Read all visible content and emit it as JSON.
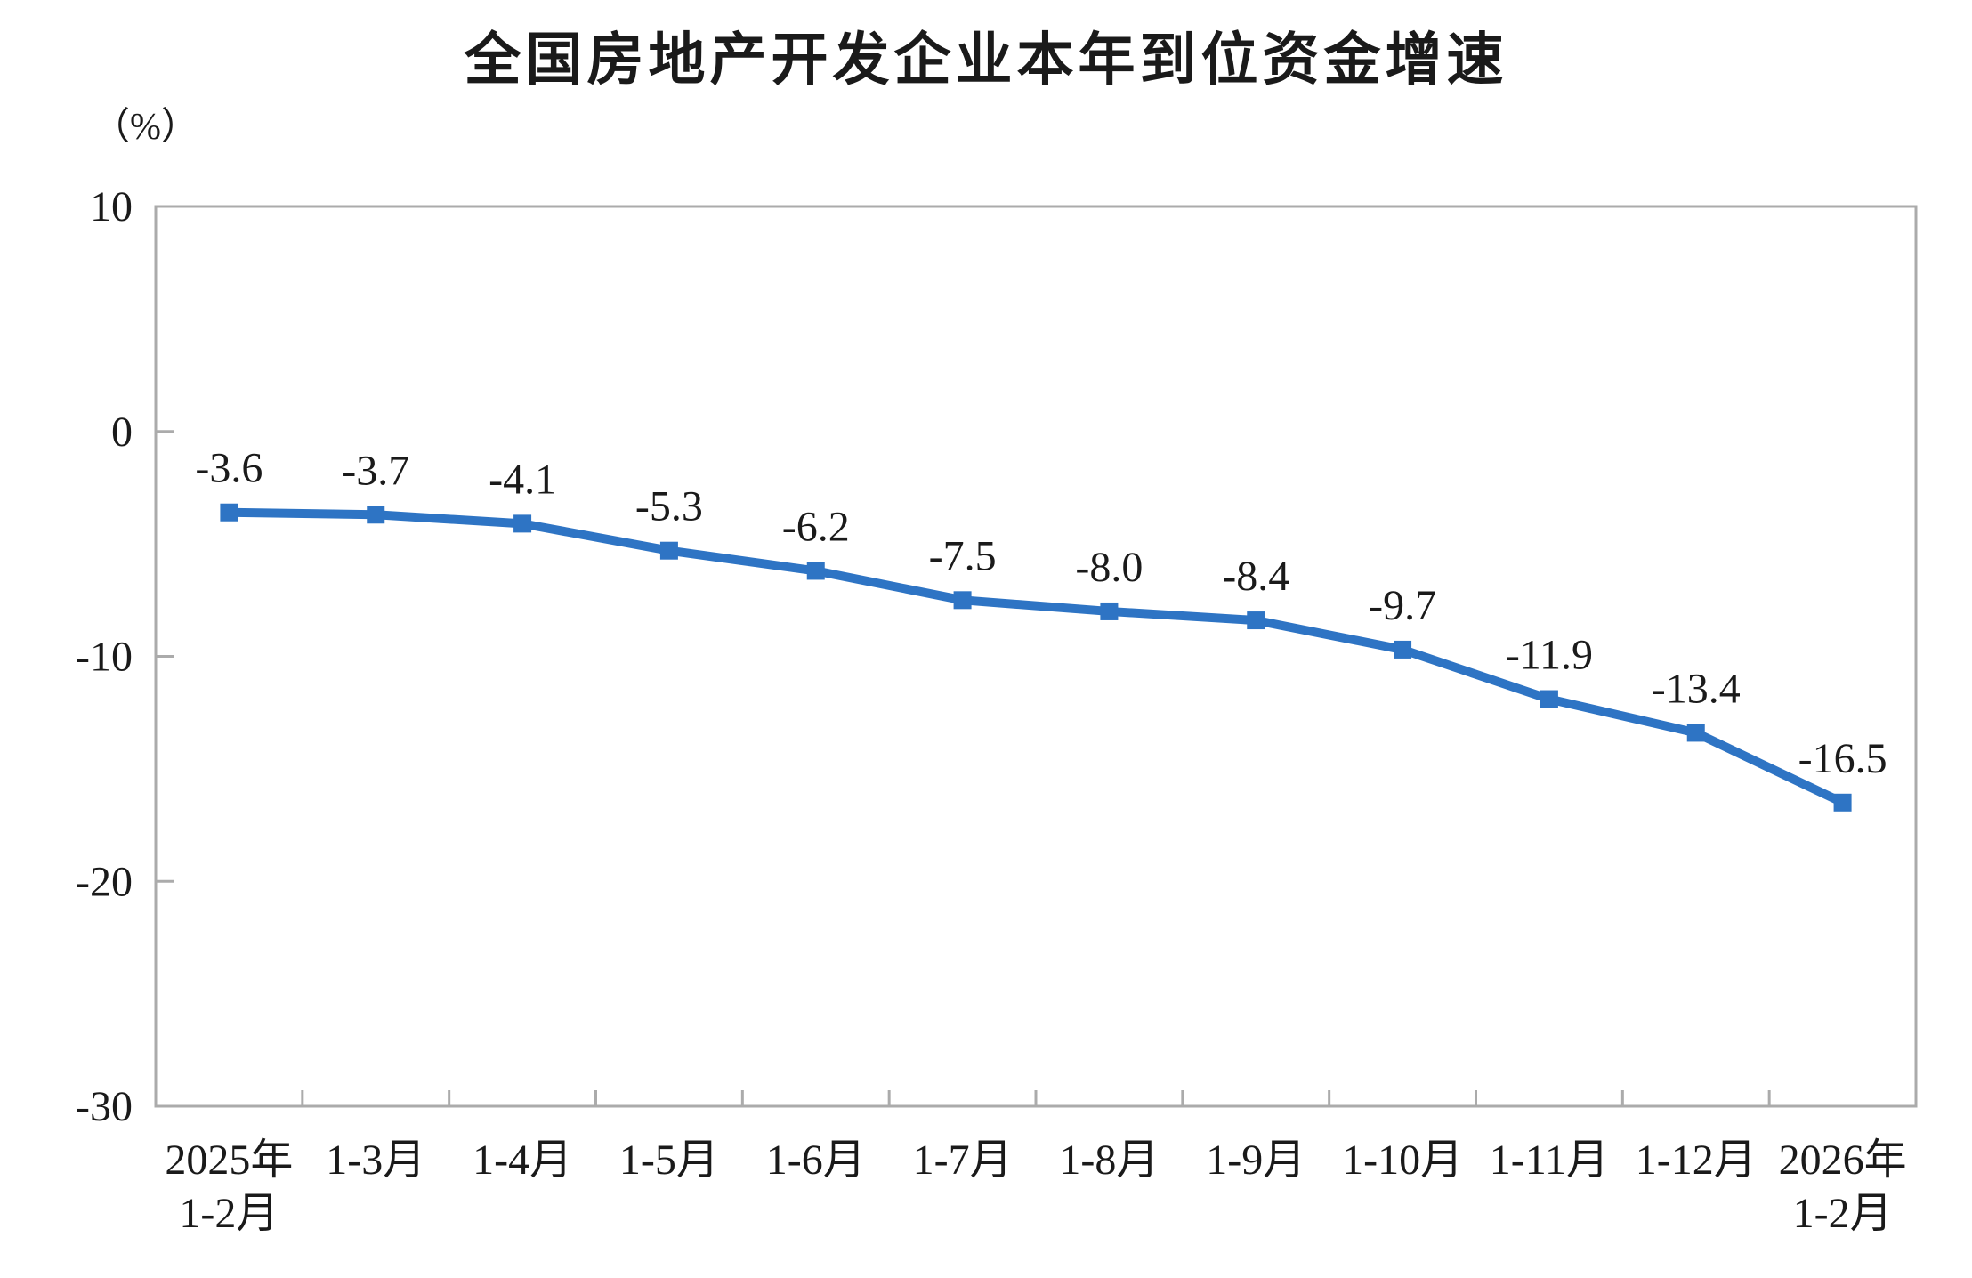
{
  "chart_data": {
    "type": "line",
    "title": "全国房地产开发企业本年到位资金增速",
    "ylabel": "（%）",
    "xlabel": "",
    "categories": [
      "2025年",
      "1-3月",
      "1-4月",
      "1-5月",
      "1-6月",
      "1-7月",
      "1-8月",
      "1-9月",
      "1-10月",
      "1-11月",
      "1-12月",
      "2026年"
    ],
    "categories_line2": [
      "1-2月",
      "",
      "",
      "",
      "",
      "",
      "",
      "",
      "",
      "",
      "",
      "1-2月"
    ],
    "values": [
      -3.6,
      -3.7,
      -4.1,
      -5.3,
      -6.2,
      -7.5,
      -8.0,
      -8.4,
      -9.7,
      -11.9,
      -13.4,
      -16.5
    ],
    "data_labels": [
      "-3.6",
      "-3.7",
      "-4.1",
      "-5.3",
      "-6.2",
      "-7.5",
      "-8.0",
      "-8.4",
      "-9.7",
      "-11.9",
      "-13.4",
      "-16.5"
    ],
    "y_ticks": [
      10,
      0,
      -10,
      -20,
      -30
    ],
    "ylim": [
      -30,
      10
    ],
    "grid": false,
    "legend": false,
    "marker": "square",
    "colors": {
      "line": "#2E74C4",
      "axis": "#ABABAB",
      "text": "#1A1A1A"
    }
  }
}
